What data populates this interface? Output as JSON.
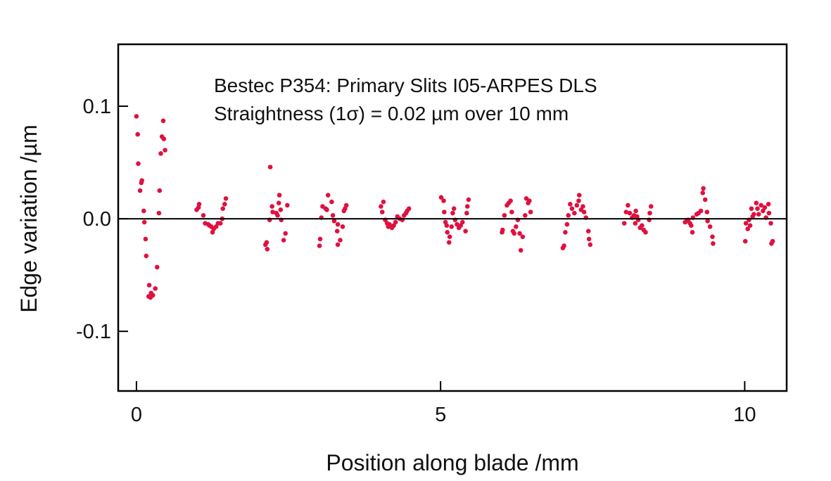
{
  "chart_data": {
    "type": "scatter",
    "title": "",
    "annotations": [
      "Bestec P354: Primary Slits I05-ARPES DLS",
      "Straightness (1σ) = 0.02 µm over 10 mm"
    ],
    "xlabel": "Position along blade /mm",
    "ylabel": "Edge variation /µm",
    "xlim": [
      -0.3,
      10.69
    ],
    "ylim": [
      -0.153,
      0.155
    ],
    "xticks": [
      0,
      5,
      10
    ],
    "xtick_labels": [
      "0",
      "5",
      "10"
    ],
    "yticks": [
      0.1,
      0.0,
      -0.1
    ],
    "ytick_labels": [
      "0.1",
      "0.0",
      "-0.1"
    ],
    "grid": false,
    "legend": null,
    "zero_line": true,
    "marker_color": "#e0103f",
    "series": [
      {
        "name": "Edge variation",
        "points": [
          [
            0.0,
            0.091
          ],
          [
            0.44,
            0.087
          ],
          [
            0.02,
            0.075
          ],
          [
            0.42,
            0.073
          ],
          [
            0.45,
            0.071
          ],
          [
            0.47,
            0.061
          ],
          [
            0.4,
            0.058
          ],
          [
            0.03,
            0.049
          ],
          [
            0.09,
            0.034
          ],
          [
            0.08,
            0.032
          ],
          [
            0.06,
            0.025
          ],
          [
            0.38,
            0.025
          ],
          [
            0.12,
            0.007
          ],
          [
            0.37,
            0.005
          ],
          [
            0.13,
            -0.003
          ],
          [
            0.15,
            -0.018
          ],
          [
            0.16,
            -0.033
          ],
          [
            0.34,
            -0.043
          ],
          [
            0.21,
            -0.059
          ],
          [
            0.31,
            -0.062
          ],
          [
            0.24,
            -0.066
          ],
          [
            0.2,
            -0.069
          ],
          [
            0.27,
            -0.068
          ],
          [
            0.23,
            -0.07
          ],
          [
            1.03,
            0.013
          ],
          [
            1.02,
            0.01
          ],
          [
            0.99,
            0.008
          ],
          [
            1.1,
            0.003
          ],
          [
            1.13,
            -0.004
          ],
          [
            1.18,
            -0.005
          ],
          [
            1.23,
            -0.007
          ],
          [
            1.25,
            -0.012
          ],
          [
            1.31,
            -0.007
          ],
          [
            1.34,
            -0.004
          ],
          [
            1.38,
            -0.004
          ],
          [
            1.41,
            0.0
          ],
          [
            1.42,
            0.009
          ],
          [
            1.45,
            0.013
          ],
          [
            1.47,
            0.018
          ],
          [
            1.27,
            -0.009
          ],
          [
            1.2,
            -0.006
          ],
          [
            2.35,
            0.021
          ],
          [
            2.34,
            0.014
          ],
          [
            2.23,
            0.011
          ],
          [
            2.48,
            0.012
          ],
          [
            2.24,
            0.006
          ],
          [
            2.3,
            0.005
          ],
          [
            2.37,
            0.008
          ],
          [
            2.19,
            -0.001
          ],
          [
            2.38,
            -0.001
          ],
          [
            2.45,
            -0.013
          ],
          [
            2.42,
            -0.019
          ],
          [
            2.14,
            -0.021
          ],
          [
            2.12,
            -0.023
          ],
          [
            2.15,
            -0.027
          ],
          [
            2.2,
            0.046
          ],
          [
            2.32,
            0.003
          ],
          [
            3.15,
            0.021
          ],
          [
            3.21,
            0.015
          ],
          [
            3.06,
            0.011
          ],
          [
            3.11,
            0.009
          ],
          [
            3.45,
            0.012
          ],
          [
            3.41,
            0.007
          ],
          [
            3.04,
            0.001
          ],
          [
            3.23,
            0.003
          ],
          [
            3.25,
            -0.002
          ],
          [
            3.31,
            -0.005
          ],
          [
            3.39,
            -0.007
          ],
          [
            3.3,
            -0.011
          ],
          [
            3.02,
            -0.018
          ],
          [
            3.01,
            -0.024
          ],
          [
            3.35,
            -0.019
          ],
          [
            3.31,
            -0.023
          ],
          [
            3.43,
            0.009
          ],
          [
            3.13,
            0.008
          ],
          [
            4.06,
            0.015
          ],
          [
            4.02,
            0.011
          ],
          [
            4.04,
            0.006
          ],
          [
            4.09,
            -0.001
          ],
          [
            4.12,
            -0.004
          ],
          [
            4.2,
            -0.008
          ],
          [
            4.26,
            -0.003
          ],
          [
            4.29,
            0.002
          ],
          [
            4.37,
            -0.001
          ],
          [
            4.43,
            0.005
          ],
          [
            4.48,
            0.009
          ],
          [
            4.16,
            -0.005
          ],
          [
            4.23,
            -0.006
          ],
          [
            4.33,
            0.0
          ],
          [
            4.4,
            0.003
          ],
          [
            4.14,
            -0.007
          ],
          [
            4.45,
            0.007
          ],
          [
            5.01,
            0.019
          ],
          [
            5.05,
            0.016
          ],
          [
            5.06,
            0.006
          ],
          [
            5.2,
            0.005
          ],
          [
            5.22,
            0.009
          ],
          [
            5.46,
            0.017
          ],
          [
            5.44,
            0.011
          ],
          [
            5.43,
            0.005
          ],
          [
            5.08,
            -0.003
          ],
          [
            5.1,
            -0.006
          ],
          [
            5.18,
            -0.007
          ],
          [
            5.24,
            -0.001
          ],
          [
            5.3,
            -0.008
          ],
          [
            5.36,
            -0.003
          ],
          [
            5.41,
            -0.011
          ],
          [
            5.11,
            -0.012
          ],
          [
            5.15,
            -0.016
          ],
          [
            5.14,
            -0.021
          ],
          [
            5.27,
            -0.005
          ],
          [
            5.33,
            -0.006
          ],
          [
            6.05,
            0.003
          ],
          [
            6.09,
            0.012
          ],
          [
            6.15,
            0.016
          ],
          [
            6.17,
            0.006
          ],
          [
            6.41,
            0.018
          ],
          [
            6.46,
            0.016
          ],
          [
            6.48,
            0.006
          ],
          [
            6.39,
            0.003
          ],
          [
            6.27,
            -0.001
          ],
          [
            6.24,
            -0.007
          ],
          [
            6.19,
            -0.011
          ],
          [
            6.21,
            -0.013
          ],
          [
            6.3,
            -0.013
          ],
          [
            6.35,
            -0.016
          ],
          [
            6.02,
            -0.01
          ],
          [
            6.01,
            -0.012
          ],
          [
            6.32,
            -0.028
          ],
          [
            6.12,
            0.014
          ],
          [
            6.44,
            0.014
          ],
          [
            7.28,
            0.021
          ],
          [
            7.27,
            0.016
          ],
          [
            7.13,
            0.013
          ],
          [
            7.16,
            0.009
          ],
          [
            7.2,
            0.005
          ],
          [
            7.34,
            0.011
          ],
          [
            7.36,
            0.006
          ],
          [
            7.39,
            0.001
          ],
          [
            7.1,
            0.003
          ],
          [
            7.08,
            -0.005
          ],
          [
            7.05,
            -0.012
          ],
          [
            7.03,
            -0.024
          ],
          [
            7.43,
            -0.011
          ],
          [
            7.44,
            -0.018
          ],
          [
            7.46,
            -0.023
          ],
          [
            7.01,
            -0.026
          ],
          [
            7.24,
            0.012
          ],
          [
            7.31,
            0.008
          ],
          [
            8.08,
            0.012
          ],
          [
            8.05,
            0.006
          ],
          [
            8.11,
            0.005
          ],
          [
            8.21,
            0.007
          ],
          [
            8.15,
            0.001
          ],
          [
            8.25,
            -0.001
          ],
          [
            8.2,
            -0.004
          ],
          [
            8.02,
            -0.004
          ],
          [
            8.31,
            -0.006
          ],
          [
            8.34,
            -0.01
          ],
          [
            8.43,
            -0.001
          ],
          [
            8.44,
            0.005
          ],
          [
            8.46,
            0.011
          ],
          [
            8.28,
            -0.008
          ],
          [
            8.18,
            0.003
          ],
          [
            8.37,
            -0.012
          ],
          [
            8.23,
            0.002
          ],
          [
            9.32,
            0.027
          ],
          [
            9.31,
            0.023
          ],
          [
            9.35,
            0.017
          ],
          [
            9.28,
            0.007
          ],
          [
            9.21,
            0.004
          ],
          [
            9.15,
            0.001
          ],
          [
            9.07,
            -0.001
          ],
          [
            9.02,
            -0.003
          ],
          [
            9.12,
            -0.006
          ],
          [
            9.14,
            -0.012
          ],
          [
            9.38,
            0.006
          ],
          [
            9.39,
            -0.002
          ],
          [
            9.43,
            -0.007
          ],
          [
            9.47,
            -0.016
          ],
          [
            9.48,
            -0.022
          ],
          [
            9.1,
            -0.004
          ],
          [
            9.24,
            0.005
          ],
          [
            9.05,
            -0.002
          ],
          [
            10.02,
            -0.004
          ],
          [
            10.05,
            -0.009
          ],
          [
            10.07,
            -0.001
          ],
          [
            10.11,
            0.009
          ],
          [
            10.19,
            0.014
          ],
          [
            10.23,
            0.004
          ],
          [
            10.27,
            0.012
          ],
          [
            10.3,
            0.007
          ],
          [
            10.35,
            0.001
          ],
          [
            10.39,
            0.013
          ],
          [
            10.4,
            0.005
          ],
          [
            10.43,
            -0.004
          ],
          [
            10.01,
            -0.02
          ],
          [
            10.44,
            -0.022
          ],
          [
            10.46,
            -0.02
          ],
          [
            10.15,
            0.004
          ],
          [
            10.21,
            0.009
          ],
          [
            10.33,
            0.01
          ],
          [
            10.13,
            0.002
          ],
          [
            10.09,
            -0.006
          ]
        ]
      }
    ]
  }
}
